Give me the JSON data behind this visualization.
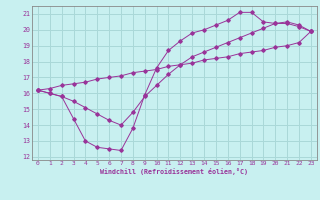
{
  "xlabel": "Windchill (Refroidissement éolien,°C)",
  "bg_color": "#c8f0f0",
  "grid_color": "#aad8d8",
  "line_color": "#993399",
  "xlim": [
    -0.5,
    23.5
  ],
  "ylim": [
    11.8,
    21.5
  ],
  "xticks": [
    0,
    1,
    2,
    3,
    4,
    5,
    6,
    7,
    8,
    9,
    10,
    11,
    12,
    13,
    14,
    15,
    16,
    17,
    18,
    19,
    20,
    21,
    22,
    23
  ],
  "yticks": [
    12,
    13,
    14,
    15,
    16,
    17,
    18,
    19,
    20,
    21
  ],
  "curve_straight_x": [
    0,
    1,
    2,
    3,
    4,
    5,
    6,
    7,
    8,
    9,
    10,
    11,
    12,
    13,
    14,
    15,
    16,
    17,
    18,
    19,
    20,
    21,
    22,
    23
  ],
  "curve_straight_y": [
    16.2,
    16.3,
    16.5,
    16.6,
    16.7,
    16.9,
    17.0,
    17.1,
    17.3,
    17.4,
    17.5,
    17.7,
    17.8,
    17.9,
    18.1,
    18.2,
    18.3,
    18.5,
    18.6,
    18.7,
    18.9,
    19.0,
    19.2,
    19.9
  ],
  "curve_mid_x": [
    0,
    1,
    2,
    3,
    4,
    5,
    6,
    7,
    8,
    9,
    10,
    11,
    12,
    13,
    14,
    15,
    16,
    17,
    18,
    19,
    20,
    21,
    22,
    23
  ],
  "curve_mid_y": [
    16.2,
    16.0,
    15.8,
    15.5,
    15.1,
    14.7,
    14.3,
    14.0,
    14.8,
    15.8,
    16.5,
    17.2,
    17.8,
    18.3,
    18.6,
    18.9,
    19.2,
    19.5,
    19.8,
    20.1,
    20.4,
    20.5,
    20.3,
    19.9
  ],
  "curve_dip_x": [
    0,
    1,
    2,
    3,
    4,
    5,
    6,
    7,
    8,
    9,
    10,
    11,
    12,
    13,
    14,
    15,
    16,
    17,
    18,
    19,
    20,
    21,
    22,
    23
  ],
  "curve_dip_y": [
    16.2,
    16.0,
    15.8,
    14.4,
    13.0,
    12.6,
    12.5,
    12.4,
    13.8,
    15.9,
    17.6,
    18.7,
    19.3,
    19.8,
    20.0,
    20.3,
    20.6,
    21.1,
    21.1,
    20.5,
    20.4,
    20.4,
    20.2,
    19.9
  ]
}
